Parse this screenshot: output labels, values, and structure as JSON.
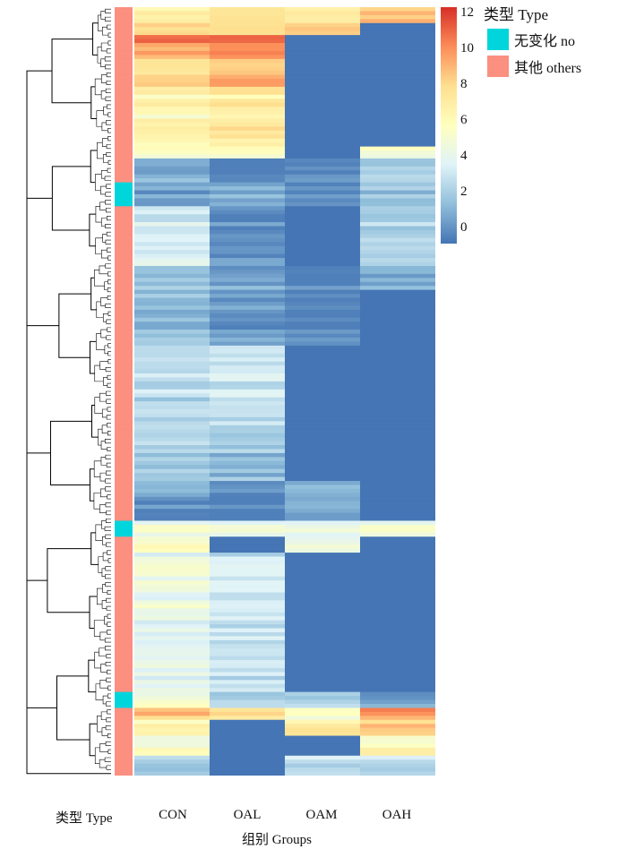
{
  "chart_data": {
    "type": "heatmap",
    "columns": [
      "CON",
      "OAL",
      "OAM",
      "OAH"
    ],
    "row_type_label": "类型 Type",
    "axis_title": "组别 Groups",
    "colorbar": {
      "min": 0,
      "max": 12,
      "ticks": [
        0,
        2,
        4,
        6,
        8,
        10,
        12
      ],
      "colors": [
        "#4575b4",
        "#91bfdb",
        "#e0f3f8",
        "#ffffbf",
        "#fee090",
        "#fc8d59",
        "#d73027"
      ]
    },
    "legend": {
      "title": "类型  Type",
      "items": [
        {
          "label": "无变化  no",
          "color": "#00d5dc"
        },
        {
          "label": "其他  others",
          "color": "#fb8f80"
        }
      ]
    },
    "row_blocks": [
      {
        "rows": 4,
        "type": "others",
        "values": [
          7.5,
          8.0,
          7.5,
          9.0
        ]
      },
      {
        "rows": 3,
        "type": "others",
        "values": [
          8.5,
          8.5,
          9.0,
          0.0
        ]
      },
      {
        "rows": 5,
        "type": "others",
        "values": [
          10.0,
          10.5,
          0.0,
          0.0
        ]
      },
      {
        "rows": 8,
        "type": "others",
        "values": [
          8.0,
          9.0,
          0.0,
          0.0
        ]
      },
      {
        "rows": 15,
        "type": "others",
        "values": [
          6.5,
          7.0,
          0.0,
          0.0
        ]
      },
      {
        "rows": 3,
        "type": "others",
        "values": [
          5.5,
          5.5,
          0.0,
          5.0
        ]
      },
      {
        "rows": 6,
        "type": "others",
        "values": [
          2.0,
          0.5,
          1.0,
          3.0
        ]
      },
      {
        "rows": 6,
        "type": "no",
        "values": [
          1.0,
          1.5,
          0.5,
          2.0
        ]
      },
      {
        "rows": 15,
        "type": "others",
        "values": [
          3.5,
          0.5,
          0.0,
          2.5
        ]
      },
      {
        "rows": 6,
        "type": "others",
        "values": [
          2.5,
          1.5,
          0.5,
          2.0
        ]
      },
      {
        "rows": 14,
        "type": "others",
        "values": [
          2.0,
          1.0,
          0.5,
          0.0
        ]
      },
      {
        "rows": 20,
        "type": "others",
        "values": [
          3.0,
          3.5,
          0.0,
          0.0
        ]
      },
      {
        "rows": 14,
        "type": "others",
        "values": [
          2.5,
          2.0,
          0.0,
          0.0
        ]
      },
      {
        "rows": 4,
        "type": "others",
        "values": [
          1.5,
          0.5,
          1.5,
          0.0
        ]
      },
      {
        "rows": 6,
        "type": "others",
        "values": [
          1.0,
          0.5,
          2.0,
          0.0
        ]
      },
      {
        "rows": 4,
        "type": "no",
        "values": [
          5.0,
          4.5,
          4.5,
          5.0
        ]
      },
      {
        "rows": 4,
        "type": "others",
        "values": [
          6.0,
          0.0,
          5.0,
          0.0
        ]
      },
      {
        "rows": 35,
        "type": "others",
        "values": [
          4.5,
          3.5,
          0.0,
          0.0
        ]
      },
      {
        "rows": 4,
        "type": "no",
        "values": [
          5.0,
          2.5,
          2.5,
          1.0
        ]
      },
      {
        "rows": 3,
        "type": "others",
        "values": [
          8.5,
          7.5,
          5.5,
          9.5
        ]
      },
      {
        "rows": 4,
        "type": "others",
        "values": [
          6.0,
          0.0,
          7.0,
          8.0
        ]
      },
      {
        "rows": 5,
        "type": "others",
        "values": [
          5.5,
          0.0,
          0.0,
          6.5
        ]
      },
      {
        "rows": 5,
        "type": "others",
        "values": [
          3.0,
          0.0,
          3.5,
          3.5
        ]
      }
    ]
  }
}
